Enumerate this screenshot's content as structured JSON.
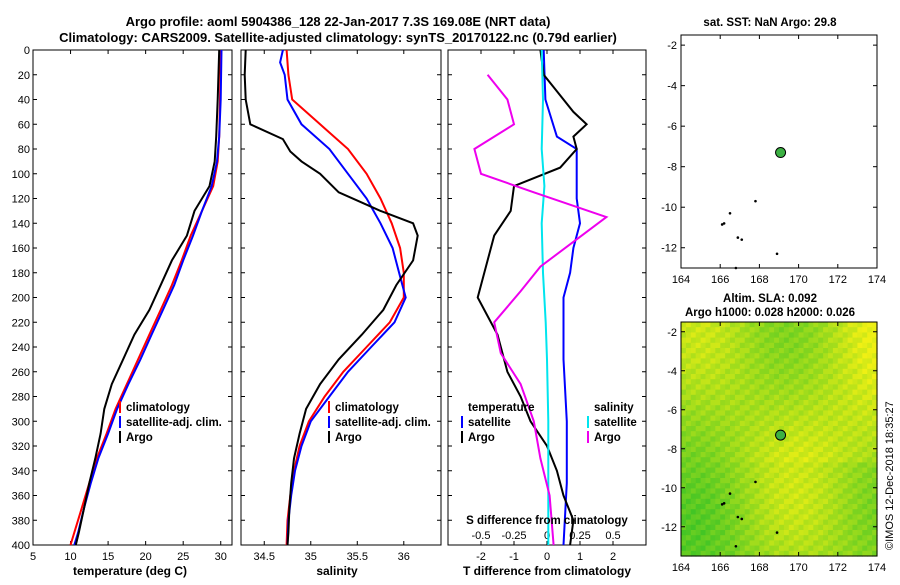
{
  "title": {
    "line1": "Argo profile: aoml 5904386_128 22-Jan-2017 7.3S 169.08E (NRT data)",
    "line2": "Climatology: CARS2009. Satellite-adjusted climatology: synTS_20170122.nc (0.79d earlier)"
  },
  "colors": {
    "climatology": "#ff0000",
    "satellite": "#0000ff",
    "argo": "#000000",
    "sal_sat": "#00e5ee",
    "sal_clim": "#ee00ee",
    "float": "#3cb043"
  },
  "chart_data": [
    {
      "id": "temperature",
      "type": "line",
      "xlabel": "temperature (deg C)",
      "ylim": [
        400,
        0
      ],
      "xlim": [
        5,
        31.5
      ],
      "xticks": [
        "5",
        "10",
        "15",
        "20",
        "25",
        "30"
      ],
      "yticks": [
        "0",
        "20",
        "40",
        "60",
        "80",
        "100",
        "120",
        "140",
        "160",
        "180",
        "200",
        "220",
        "240",
        "260",
        "280",
        "300",
        "320",
        "340",
        "360",
        "380",
        "400"
      ],
      "legend": [
        "climatology",
        "satellite-adj. clim.",
        "Argo"
      ],
      "series": [
        {
          "name": "climatology",
          "color": "#ff0000",
          "points": [
            [
              30,
              0
            ],
            [
              29.9,
              40
            ],
            [
              29.8,
              70
            ],
            [
              29.6,
              90
            ],
            [
              29,
              110
            ],
            [
              27.5,
              130
            ],
            [
              26,
              150
            ],
            [
              24.8,
              170
            ],
            [
              23.5,
              190
            ],
            [
              22,
              210
            ],
            [
              20.5,
              230
            ],
            [
              19,
              250
            ],
            [
              17.5,
              270
            ],
            [
              16,
              290
            ],
            [
              14.8,
              310
            ],
            [
              13.5,
              330
            ],
            [
              12.5,
              350
            ],
            [
              11.5,
              370
            ],
            [
              10.5,
              390
            ],
            [
              10,
              400
            ]
          ]
        },
        {
          "name": "satellite-adj. clim.",
          "color": "#0000ff",
          "points": [
            [
              30.1,
              0
            ],
            [
              30,
              40
            ],
            [
              29.8,
              70
            ],
            [
              29.5,
              90
            ],
            [
              28.8,
              110
            ],
            [
              27.5,
              130
            ],
            [
              26.3,
              150
            ],
            [
              25,
              170
            ],
            [
              23.8,
              190
            ],
            [
              22.3,
              210
            ],
            [
              20.8,
              230
            ],
            [
              19.3,
              250
            ],
            [
              17.7,
              270
            ],
            [
              16.2,
              290
            ],
            [
              15,
              310
            ],
            [
              13.7,
              330
            ],
            [
              12.7,
              350
            ],
            [
              11.8,
              370
            ],
            [
              11,
              390
            ],
            [
              10.5,
              400
            ]
          ]
        },
        {
          "name": "Argo",
          "color": "#000000",
          "points": [
            [
              29.8,
              0
            ],
            [
              29.6,
              40
            ],
            [
              29.4,
              70
            ],
            [
              29.2,
              90
            ],
            [
              28.5,
              110
            ],
            [
              26.5,
              130
            ],
            [
              25.5,
              150
            ],
            [
              23.5,
              170
            ],
            [
              22,
              190
            ],
            [
              20.5,
              210
            ],
            [
              18.5,
              230
            ],
            [
              17,
              250
            ],
            [
              15.5,
              270
            ],
            [
              14.5,
              290
            ],
            [
              14,
              310
            ],
            [
              13.3,
              330
            ],
            [
              12.5,
              350
            ],
            [
              11.8,
              370
            ],
            [
              11.1,
              390
            ],
            [
              10.7,
              400
            ]
          ]
        }
      ]
    },
    {
      "id": "salinity",
      "type": "line",
      "xlabel": "salinity",
      "ylim": [
        400,
        0
      ],
      "xlim": [
        34.25,
        36.4
      ],
      "xticks": [
        "34.5",
        "35",
        "35.5",
        "36"
      ],
      "legend": [
        "climatology",
        "satellite-adj. clim.",
        "Argo"
      ],
      "series": [
        {
          "name": "climatology",
          "color": "#ff0000",
          "points": [
            [
              34.74,
              0
            ],
            [
              34.76,
              20
            ],
            [
              34.8,
              40
            ],
            [
              35.1,
              60
            ],
            [
              35.4,
              80
            ],
            [
              35.6,
              100
            ],
            [
              35.75,
              120
            ],
            [
              35.87,
              140
            ],
            [
              35.96,
              160
            ],
            [
              36.0,
              180
            ],
            [
              36.0,
              200
            ],
            [
              35.85,
              220
            ],
            [
              35.6,
              240
            ],
            [
              35.35,
              260
            ],
            [
              35.15,
              280
            ],
            [
              34.98,
              300
            ],
            [
              34.88,
              320
            ],
            [
              34.82,
              340
            ],
            [
              34.78,
              360
            ],
            [
              34.75,
              380
            ],
            [
              34.74,
              400
            ]
          ]
        },
        {
          "name": "satellite-adj. clim.",
          "color": "#0000ff",
          "points": [
            [
              34.7,
              0
            ],
            [
              34.67,
              10
            ],
            [
              34.72,
              20
            ],
            [
              34.75,
              40
            ],
            [
              34.9,
              60
            ],
            [
              35.2,
              80
            ],
            [
              35.4,
              100
            ],
            [
              35.6,
              120
            ],
            [
              35.75,
              140
            ],
            [
              35.88,
              160
            ],
            [
              35.95,
              180
            ],
            [
              36.02,
              200
            ],
            [
              35.9,
              220
            ],
            [
              35.65,
              240
            ],
            [
              35.4,
              260
            ],
            [
              35.2,
              280
            ],
            [
              35.0,
              300
            ],
            [
              34.9,
              320
            ],
            [
              34.83,
              340
            ],
            [
              34.79,
              360
            ],
            [
              34.76,
              380
            ],
            [
              34.75,
              400
            ]
          ]
        },
        {
          "name": "Argo",
          "color": "#000000",
          "points": [
            [
              34.3,
              0
            ],
            [
              34.29,
              20
            ],
            [
              34.3,
              40
            ],
            [
              34.35,
              60
            ],
            [
              34.7,
              72
            ],
            [
              34.78,
              82
            ],
            [
              34.9,
              90
            ],
            [
              35.1,
              100
            ],
            [
              35.3,
              115
            ],
            [
              35.6,
              125
            ],
            [
              35.75,
              130
            ],
            [
              36.1,
              140
            ],
            [
              36.15,
              150
            ],
            [
              36.1,
              170
            ],
            [
              35.92,
              190
            ],
            [
              35.78,
              210
            ],
            [
              35.55,
              230
            ],
            [
              35.3,
              250
            ],
            [
              35.1,
              270
            ],
            [
              34.95,
              290
            ],
            [
              34.88,
              310
            ],
            [
              34.82,
              330
            ],
            [
              34.79,
              350
            ],
            [
              34.77,
              370
            ],
            [
              34.76,
              390
            ],
            [
              34.75,
              400
            ]
          ]
        }
      ]
    },
    {
      "id": "differences",
      "type": "line",
      "xlabel": "T difference from climatology",
      "toplabel": "S difference from climatology",
      "ylim": [
        400,
        0
      ],
      "xlim": [
        -3,
        3
      ],
      "xticks_T": [
        "-2",
        "-1",
        "0",
        "1",
        "2"
      ],
      "xticks_S": [
        "-0.5",
        "-0.25",
        "0",
        "0.25",
        "0.5"
      ],
      "legend_temperature_title": "temperature",
      "legend_salinity_title": "salinity",
      "legend_temperature": [
        "satellite",
        "Argo"
      ],
      "legend_salinity": [
        "satellite",
        "Argo"
      ],
      "series": [
        {
          "name": "T satellite",
          "color": "#0000ff",
          "points": [
            [
              -0.1,
              0
            ],
            [
              -0.05,
              40
            ],
            [
              0.3,
              70
            ],
            [
              0.9,
              80
            ],
            [
              0.9,
              100
            ],
            [
              0.9,
              120
            ],
            [
              1.0,
              140
            ],
            [
              0.8,
              160
            ],
            [
              0.7,
              180
            ],
            [
              0.5,
              200
            ],
            [
              0.5,
              250
            ],
            [
              0.6,
              300
            ],
            [
              0.6,
              350
            ],
            [
              0.5,
              400
            ]
          ]
        },
        {
          "name": "T Argo",
          "color": "#000000",
          "points": [
            [
              -0.2,
              0
            ],
            [
              -0.1,
              20
            ],
            [
              0.2,
              30
            ],
            [
              0.8,
              50
            ],
            [
              1.2,
              60
            ],
            [
              0.8,
              70
            ],
            [
              0.9,
              80
            ],
            [
              0.4,
              95
            ],
            [
              -1.0,
              110
            ],
            [
              -1.1,
              130
            ],
            [
              -1.6,
              150
            ],
            [
              -1.8,
              170
            ],
            [
              -2.1,
              200
            ],
            [
              -1.5,
              230
            ],
            [
              -1.2,
              260
            ],
            [
              -0.8,
              280
            ],
            [
              -0.5,
              300
            ],
            [
              0.0,
              320
            ],
            [
              0.3,
              340
            ],
            [
              0.5,
              360
            ],
            [
              0.8,
              380
            ],
            [
              0.7,
              400
            ]
          ]
        },
        {
          "name": "S satellite",
          "color": "#00e5ee",
          "points": [
            [
              -0.04,
              0
            ],
            [
              -0.03,
              40
            ],
            [
              -0.04,
              80
            ],
            [
              -0.02,
              110
            ],
            [
              -0.04,
              140
            ],
            [
              -0.03,
              180
            ],
            [
              -0.01,
              220
            ],
            [
              0.0,
              250
            ],
            [
              0.01,
              300
            ],
            [
              0.01,
              350
            ],
            [
              0.01,
              400
            ]
          ]
        },
        {
          "name": "S Argo",
          "color": "#ee00ee",
          "points": [
            [
              -0.45,
              20
            ],
            [
              -0.3,
              40
            ],
            [
              -0.25,
              60
            ],
            [
              -0.55,
              80
            ],
            [
              -0.5,
              100
            ],
            [
              -0.1,
              115
            ],
            [
              0.45,
              135
            ],
            [
              0.2,
              155
            ],
            [
              -0.05,
              175
            ],
            [
              -0.2,
              195
            ],
            [
              -0.4,
              220
            ],
            [
              -0.35,
              245
            ],
            [
              -0.2,
              270
            ],
            [
              -0.1,
              300
            ],
            [
              -0.05,
              330
            ],
            [
              0.02,
              360
            ],
            [
              0.05,
              400
            ]
          ]
        }
      ]
    },
    {
      "id": "sst_map",
      "type": "scatter",
      "title": "sat. SST: NaN Argo: 29.8",
      "xlim": [
        164,
        174
      ],
      "ylim": [
        -13,
        -1.5
      ],
      "xticks": [
        "164",
        "166",
        "168",
        "170",
        "172",
        "174"
      ],
      "yticks": [
        "-2",
        "-4",
        "-6",
        "-8",
        "-10",
        "-12"
      ],
      "float_position": [
        169.08,
        -7.3
      ]
    },
    {
      "id": "sla_map",
      "type": "heatmap",
      "title": "Altim. SLA: 0.092",
      "subtitle": "Argo h1000: 0.028 h2000: 0.026",
      "xlim": [
        164,
        174
      ],
      "ylim": [
        -13.5,
        -1.5
      ],
      "xticks": [
        "164",
        "166",
        "168",
        "170",
        "172",
        "174"
      ],
      "yticks": [
        "-2",
        "-4",
        "-6",
        "-8",
        "-10",
        "-12"
      ],
      "float_position": [
        169.08,
        -7.3
      ]
    }
  ],
  "footer": {
    "stamp": "©IMOS 12-Dec-2018 18:35:27"
  }
}
